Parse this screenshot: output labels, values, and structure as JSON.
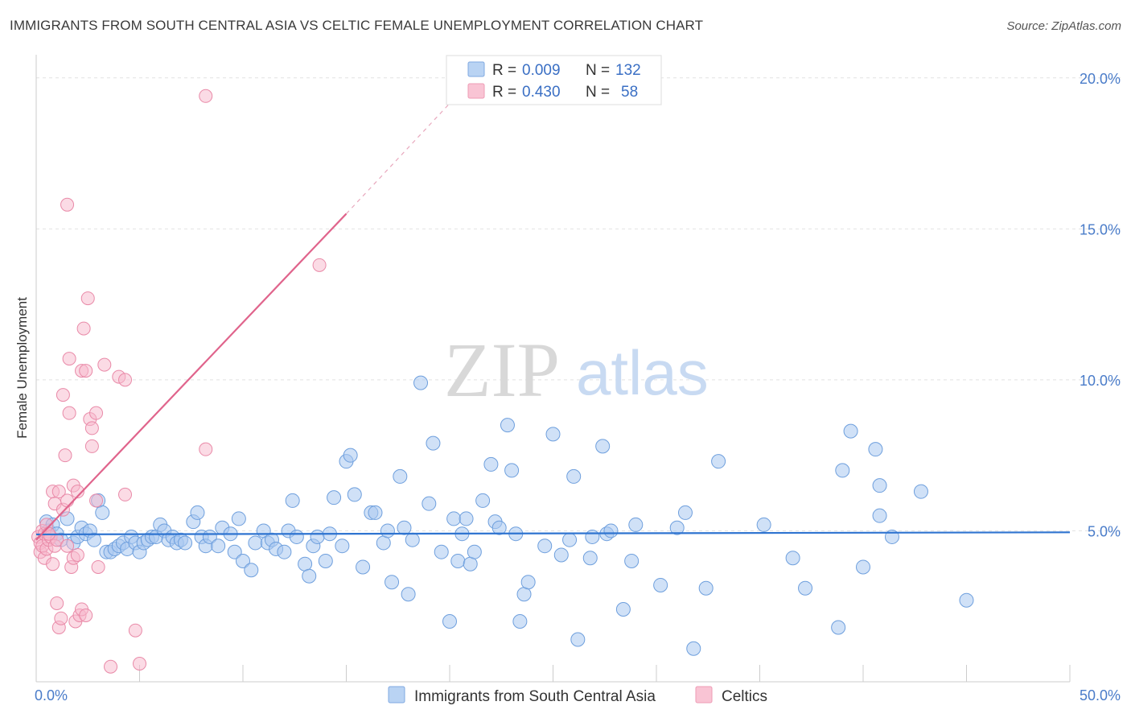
{
  "header": {
    "title": "IMMIGRANTS FROM SOUTH CENTRAL ASIA VS CELTIC FEMALE UNEMPLOYMENT CORRELATION CHART",
    "source": "Source: ZipAtlas.com"
  },
  "watermark": {
    "zip": "ZIP",
    "atlas": "atlas"
  },
  "legend_top": {
    "rows": [
      {
        "r_label": "R = ",
        "r_value": "0.009",
        "n_label": "N = ",
        "n_value": "132"
      },
      {
        "r_label": "R = ",
        "r_value": "0.430",
        "n_label": "N = ",
        "n_value": "58"
      }
    ]
  },
  "legend_bottom": {
    "items": [
      "Immigrants from South Central Asia",
      "Celtics"
    ]
  },
  "colors": {
    "blue_fill": "#a9c8f0",
    "blue_stroke": "#6e9fdd",
    "blue_line": "#2f74d0",
    "pink_fill": "#f7b8cc",
    "pink_stroke": "#e98aa8",
    "pink_line": "#e0648c",
    "tick_text": "#4a7cc9",
    "grid": "#e2e2e2"
  },
  "chart_data": {
    "type": "scatter",
    "title": "IMMIGRANTS FROM SOUTH CENTRAL ASIA VS CELTIC FEMALE UNEMPLOYMENT CORRELATION CHART",
    "xlabel": "",
    "ylabel": "Female Unemployment",
    "xlim": [
      0,
      50
    ],
    "ylim": [
      0,
      20.5
    ],
    "x_tick_labels": [
      "0.0%",
      "50.0%"
    ],
    "y_ticks": [
      5,
      10,
      15,
      20
    ],
    "y_tick_labels": [
      "5.0%",
      "10.0%",
      "15.0%",
      "20.0%"
    ],
    "grid": true,
    "legend_position": "top-center",
    "series": [
      {
        "name": "Immigrants from South Central Asia",
        "r": 0.009,
        "n": 132,
        "trend": {
          "x": [
            0,
            50
          ],
          "y": [
            4.88,
            4.95
          ]
        },
        "points": [
          [
            0.5,
            5.3
          ],
          [
            0.6,
            5.0
          ],
          [
            0.8,
            5.2
          ],
          [
            1.0,
            4.9
          ],
          [
            1.2,
            4.7
          ],
          [
            1.5,
            5.4
          ],
          [
            1.8,
            4.6
          ],
          [
            2.0,
            4.8
          ],
          [
            2.2,
            5.1
          ],
          [
            2.4,
            4.9
          ],
          [
            2.6,
            5.0
          ],
          [
            2.8,
            4.7
          ],
          [
            3.0,
            6.0
          ],
          [
            3.2,
            5.6
          ],
          [
            3.4,
            4.3
          ],
          [
            3.6,
            4.3
          ],
          [
            3.8,
            4.4
          ],
          [
            4.0,
            4.5
          ],
          [
            4.2,
            4.6
          ],
          [
            4.4,
            4.4
          ],
          [
            4.6,
            4.8
          ],
          [
            4.8,
            4.6
          ],
          [
            5.0,
            4.3
          ],
          [
            5.2,
            4.6
          ],
          [
            5.4,
            4.7
          ],
          [
            5.6,
            4.8
          ],
          [
            5.8,
            4.8
          ],
          [
            6.0,
            5.2
          ],
          [
            6.2,
            5.0
          ],
          [
            6.4,
            4.7
          ],
          [
            6.6,
            4.8
          ],
          [
            6.8,
            4.6
          ],
          [
            7.0,
            4.7
          ],
          [
            7.2,
            4.6
          ],
          [
            7.6,
            5.3
          ],
          [
            7.8,
            5.6
          ],
          [
            8.0,
            4.8
          ],
          [
            8.2,
            4.5
          ],
          [
            8.4,
            4.8
          ],
          [
            8.8,
            4.5
          ],
          [
            9.0,
            5.1
          ],
          [
            9.4,
            4.9
          ],
          [
            9.6,
            4.3
          ],
          [
            9.8,
            5.4
          ],
          [
            10.0,
            4.0
          ],
          [
            10.4,
            3.7
          ],
          [
            10.6,
            4.6
          ],
          [
            11.0,
            5.0
          ],
          [
            11.2,
            4.6
          ],
          [
            11.4,
            4.7
          ],
          [
            11.6,
            4.4
          ],
          [
            12.0,
            4.3
          ],
          [
            12.2,
            5.0
          ],
          [
            12.4,
            6.0
          ],
          [
            12.6,
            4.8
          ],
          [
            13.0,
            3.9
          ],
          [
            13.2,
            3.5
          ],
          [
            13.4,
            4.5
          ],
          [
            13.6,
            4.8
          ],
          [
            14.0,
            4.0
          ],
          [
            14.2,
            4.9
          ],
          [
            14.4,
            6.1
          ],
          [
            14.8,
            4.5
          ],
          [
            15.0,
            7.3
          ],
          [
            15.2,
            7.5
          ],
          [
            15.4,
            6.2
          ],
          [
            15.8,
            3.8
          ],
          [
            16.2,
            5.6
          ],
          [
            16.4,
            5.6
          ],
          [
            16.8,
            4.6
          ],
          [
            17.0,
            5.0
          ],
          [
            17.2,
            3.3
          ],
          [
            17.6,
            6.8
          ],
          [
            17.8,
            5.1
          ],
          [
            18.0,
            2.9
          ],
          [
            18.2,
            4.7
          ],
          [
            18.6,
            9.9
          ],
          [
            19.0,
            5.9
          ],
          [
            19.2,
            7.9
          ],
          [
            19.6,
            4.3
          ],
          [
            20.0,
            2.0
          ],
          [
            20.2,
            5.4
          ],
          [
            20.4,
            4.0
          ],
          [
            20.8,
            5.4
          ],
          [
            20.6,
            4.9
          ],
          [
            21.0,
            3.9
          ],
          [
            21.2,
            4.3
          ],
          [
            21.6,
            6.0
          ],
          [
            22.0,
            7.2
          ],
          [
            22.2,
            5.3
          ],
          [
            22.4,
            5.1
          ],
          [
            22.8,
            8.5
          ],
          [
            23.0,
            7.0
          ],
          [
            23.2,
            4.9
          ],
          [
            23.4,
            2.0
          ],
          [
            23.6,
            2.9
          ],
          [
            23.8,
            3.3
          ],
          [
            24.6,
            4.5
          ],
          [
            25.4,
            4.2
          ],
          [
            25.8,
            4.7
          ],
          [
            25.0,
            8.2
          ],
          [
            26.0,
            6.8
          ],
          [
            26.2,
            1.4
          ],
          [
            26.8,
            4.1
          ],
          [
            26.9,
            4.8
          ],
          [
            27.4,
            7.8
          ],
          [
            27.6,
            4.9
          ],
          [
            27.8,
            5.0
          ],
          [
            28.4,
            2.4
          ],
          [
            28.8,
            4.0
          ],
          [
            29.0,
            5.2
          ],
          [
            30.2,
            3.2
          ],
          [
            31.0,
            5.1
          ],
          [
            31.4,
            5.6
          ],
          [
            31.8,
            1.1
          ],
          [
            32.4,
            3.1
          ],
          [
            33.0,
            7.3
          ],
          [
            35.2,
            5.2
          ],
          [
            36.6,
            4.1
          ],
          [
            37.2,
            3.1
          ],
          [
            38.8,
            1.8
          ],
          [
            39.0,
            7.0
          ],
          [
            39.4,
            8.3
          ],
          [
            40.0,
            3.8
          ],
          [
            40.6,
            7.7
          ],
          [
            40.8,
            5.5
          ],
          [
            40.8,
            6.5
          ],
          [
            41.4,
            4.8
          ],
          [
            42.8,
            6.3
          ],
          [
            45.0,
            2.7
          ]
        ]
      },
      {
        "name": "Celtics",
        "r": 0.43,
        "n": 58,
        "trend": {
          "x": [
            0,
            15
          ],
          "y": [
            4.7,
            15.5
          ]
        },
        "trend_dashed": {
          "x": [
            15,
            20.2
          ],
          "y": [
            15.5,
            19.3
          ]
        },
        "points": [
          [
            0.1,
            4.8
          ],
          [
            0.2,
            4.6
          ],
          [
            0.2,
            4.3
          ],
          [
            0.3,
            5.0
          ],
          [
            0.3,
            4.5
          ],
          [
            0.4,
            4.9
          ],
          [
            0.4,
            4.1
          ],
          [
            0.5,
            4.4
          ],
          [
            0.5,
            5.2
          ],
          [
            0.6,
            4.7
          ],
          [
            0.7,
            4.8
          ],
          [
            0.8,
            3.9
          ],
          [
            0.8,
            6.3
          ],
          [
            0.9,
            4.5
          ],
          [
            0.9,
            5.9
          ],
          [
            1.0,
            4.7
          ],
          [
            1.0,
            2.6
          ],
          [
            1.1,
            6.3
          ],
          [
            1.1,
            1.8
          ],
          [
            1.2,
            2.1
          ],
          [
            1.3,
            9.5
          ],
          [
            1.3,
            5.7
          ],
          [
            1.4,
            7.5
          ],
          [
            1.5,
            6.0
          ],
          [
            1.5,
            4.5
          ],
          [
            1.6,
            10.7
          ],
          [
            1.6,
            8.9
          ],
          [
            1.7,
            3.8
          ],
          [
            1.8,
            6.5
          ],
          [
            1.8,
            4.1
          ],
          [
            1.9,
            2.0
          ],
          [
            2.0,
            6.3
          ],
          [
            2.0,
            4.2
          ],
          [
            2.1,
            2.2
          ],
          [
            2.2,
            10.3
          ],
          [
            2.2,
            2.4
          ],
          [
            2.3,
            11.7
          ],
          [
            2.4,
            10.3
          ],
          [
            2.4,
            2.2
          ],
          [
            2.5,
            12.7
          ],
          [
            2.6,
            8.7
          ],
          [
            2.7,
            8.4
          ],
          [
            2.7,
            7.8
          ],
          [
            2.9,
            6.0
          ],
          [
            2.9,
            8.9
          ],
          [
            3.0,
            3.8
          ],
          [
            3.3,
            10.5
          ],
          [
            3.6,
            0.5
          ],
          [
            4.0,
            10.1
          ],
          [
            4.3,
            10.0
          ],
          [
            4.3,
            6.2
          ],
          [
            4.8,
            1.7
          ],
          [
            5.0,
            0.6
          ],
          [
            8.2,
            19.4
          ],
          [
            8.2,
            7.7
          ],
          [
            13.7,
            13.8
          ],
          [
            1.5,
            15.8
          ],
          [
            0.6,
            4.9
          ]
        ]
      }
    ]
  }
}
